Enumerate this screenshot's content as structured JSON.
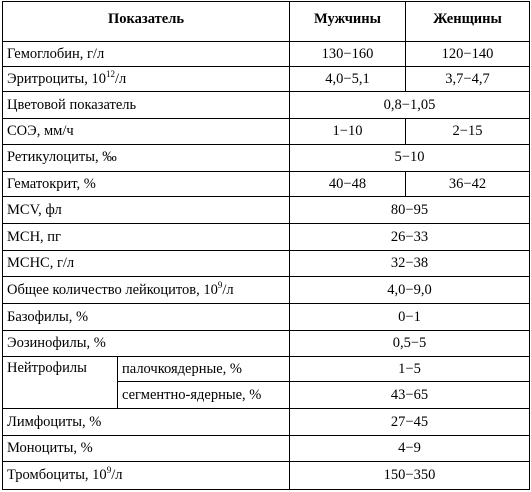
{
  "header": {
    "indicator": "Показатель",
    "men": "Мужчины",
    "women": "Женщины"
  },
  "rows": {
    "hemoglobin": {
      "label": "Гемоглобин, г/л",
      "men": "130−160",
      "women": "120−140"
    },
    "erythrocytes": {
      "label_pre": "Эритроциты, 10",
      "label_sup": "12",
      "label_post": "/л",
      "men": "4,0−5,1",
      "women": "3,7−4,7"
    },
    "color_index": {
      "label": "Цветовой показатель",
      "value": "0,8−1,05"
    },
    "esr": {
      "label": "СОЭ, мм/ч",
      "men": "1−10",
      "women": "2−15"
    },
    "reticulocytes": {
      "label": "Ретикулоциты, ‰",
      "value": "5−10"
    },
    "hematocrit": {
      "label": "Гематокрит, %",
      "men": "40−48",
      "women": "36−42"
    },
    "mcv": {
      "label": "MCV, фл",
      "value": "80−95"
    },
    "mch": {
      "label": "MCH, пг",
      "value": "26−33"
    },
    "mchc": {
      "label": "MCHC, г/л",
      "value": "32−38"
    },
    "leukocytes": {
      "label_pre": "Общее количество лейкоцитов, 10",
      "label_sup": "9",
      "label_post": "/л",
      "value": "4,0−9,0"
    },
    "basophils": {
      "label": "Базофилы, %",
      "value": "0−1"
    },
    "eosinophils": {
      "label": "Эозинофилы, %",
      "value": "0,5−5"
    },
    "neutrophils": {
      "label": "Нейтрофилы",
      "band": {
        "label": "палочкоядерные, %",
        "value": "1−5"
      },
      "segmented": {
        "label": "сегментно-ядерные, %",
        "value": "43−65"
      }
    },
    "lymphocytes": {
      "label": "Лимфоциты, %",
      "value": "27−45"
    },
    "monocytes": {
      "label": "Моноциты, %",
      "value": "4−9"
    },
    "platelets": {
      "label_pre": "Тромбоциты, 10",
      "label_sup": "9",
      "label_post": "/л",
      "value": "150−350"
    }
  }
}
